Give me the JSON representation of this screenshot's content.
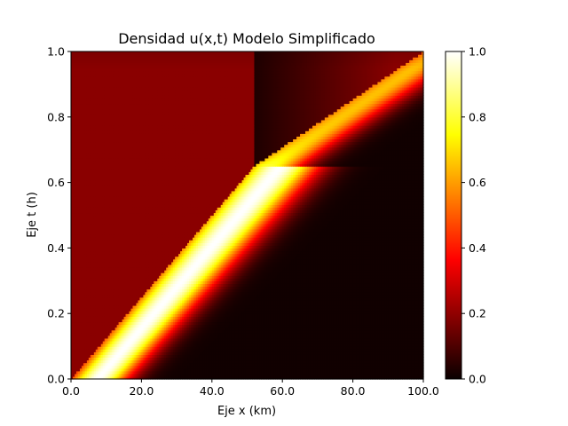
{
  "chart_data": {
    "type": "heatmap",
    "title": "Densidad u(x,t) Modelo Simplificado",
    "xlabel": "Eje x (km)",
    "ylabel": "Eje t (h)",
    "xlim": [
      0,
      100
    ],
    "ylim": [
      0,
      1
    ],
    "x_ticks": [
      0,
      20,
      40,
      60,
      80,
      100
    ],
    "x_tick_labels": [
      "0.0",
      "20.0",
      "40.0",
      "60.0",
      "80.0",
      "100.0"
    ],
    "y_ticks": [
      0,
      0.2,
      0.4,
      0.6,
      0.8,
      1.0
    ],
    "y_tick_labels": [
      "0.0",
      "0.2",
      "0.4",
      "0.6",
      "0.8",
      "1.0"
    ],
    "colormap": "hot",
    "colorbar": {
      "range": [
        0,
        1
      ],
      "ticks": [
        0,
        0.2,
        0.4,
        0.6,
        0.8,
        1.0
      ],
      "tick_labels": [
        "0.0",
        "0.2",
        "0.4",
        "0.6",
        "0.8",
        "1.0"
      ]
    },
    "features": {
      "upstream_density": 0.19,
      "downstream_density": 0.01,
      "front_path_early": [
        [
          0,
          0
        ],
        [
          52,
          0.65
        ]
      ],
      "front_path_late": [
        [
          52,
          0.65
        ],
        [
          100,
          1.0
        ]
      ],
      "peak_density_early": 1.0,
      "peak_density_late": 0.65
    }
  }
}
